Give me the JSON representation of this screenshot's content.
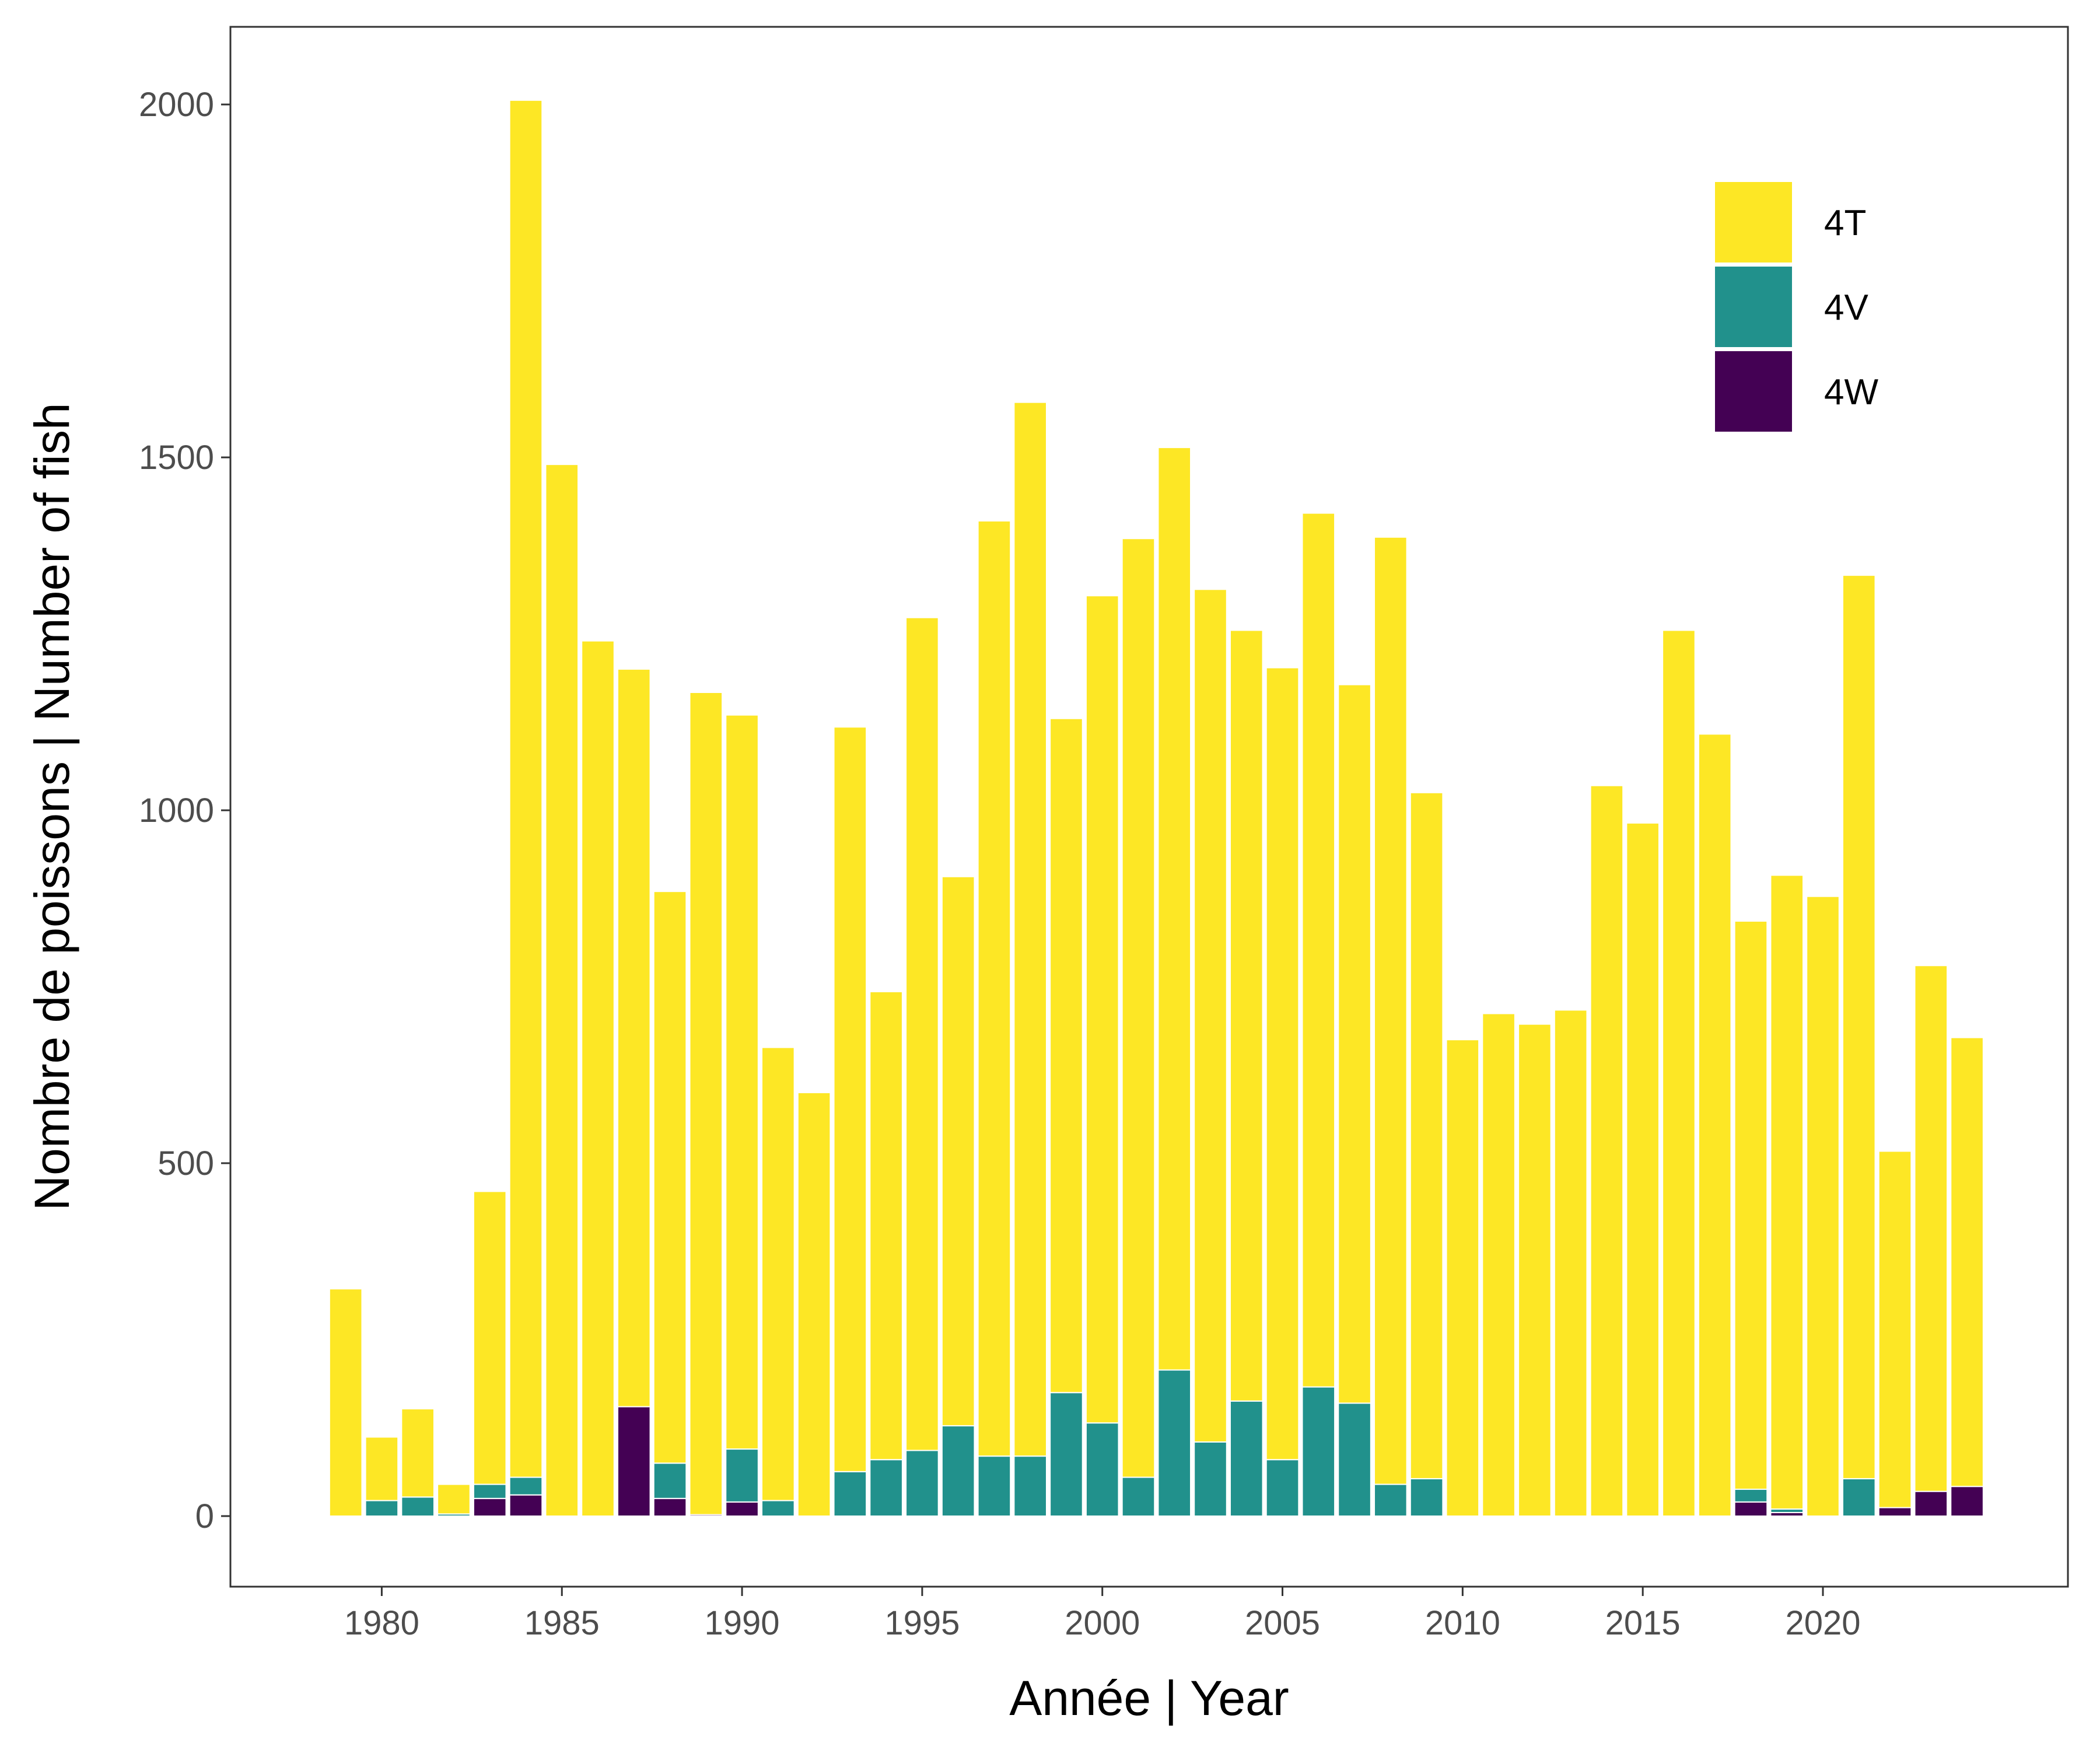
{
  "chart_data": {
    "type": "bar",
    "stacked": true,
    "xlabel": "Année | Year",
    "ylabel": "Nombre de poissons | Number of fish",
    "ylim": [
      -100,
      2110
    ],
    "xlim": [
      1975.8,
      2026.8
    ],
    "yticks": [
      0,
      500,
      1000,
      1500,
      2000
    ],
    "xticks": [
      1980,
      1985,
      1990,
      1995,
      2000,
      2005,
      2010,
      2015,
      2020
    ],
    "grid": false,
    "legend_position": "top-right",
    "x": [
      1979,
      1980,
      1981,
      1982,
      1983,
      1984,
      1985,
      1986,
      1987,
      1988,
      1989,
      1990,
      1991,
      1992,
      1993,
      1994,
      1995,
      1996,
      1997,
      1998,
      1999,
      2000,
      2001,
      2002,
      2003,
      2004,
      2005,
      2006,
      2007,
      2008,
      2009,
      2010,
      2011,
      2012,
      2013,
      2014,
      2015,
      2016,
      2017,
      2018,
      2019,
      2020,
      2021,
      2022,
      2023,
      2024
    ],
    "series": [
      {
        "name": "4W",
        "color": "#440154",
        "values": [
          0,
          0,
          0,
          0,
          25,
          30,
          0,
          0,
          155,
          25,
          2,
          20,
          0,
          0,
          0,
          0,
          0,
          0,
          0,
          0,
          0,
          0,
          0,
          0,
          0,
          0,
          0,
          0,
          0,
          0,
          0,
          0,
          0,
          0,
          0,
          0,
          0,
          0,
          0,
          20,
          5,
          0,
          0,
          12,
          35,
          42
        ]
      },
      {
        "name": "4V",
        "color": "#21918C",
        "values": [
          0,
          22,
          27,
          3,
          20,
          25,
          0,
          0,
          0,
          50,
          0,
          75,
          22,
          0,
          63,
          80,
          93,
          128,
          85,
          85,
          175,
          132,
          55,
          207,
          105,
          163,
          80,
          183,
          160,
          45,
          53,
          0,
          0,
          0,
          0,
          0,
          0,
          0,
          0,
          18,
          5,
          0,
          53,
          0,
          0,
          0
        ]
      },
      {
        "name": "4T",
        "color": "#FDE725",
        "values": [
          322,
          90,
          125,
          42,
          415,
          1951,
          1490,
          1240,
          1045,
          810,
          1165,
          1040,
          642,
          600,
          1055,
          663,
          1180,
          778,
          1325,
          1493,
          955,
          1172,
          1330,
          1307,
          1208,
          1092,
          1122,
          1238,
          1018,
          1342,
          972,
          675,
          712,
          697,
          717,
          1035,
          982,
          1255,
          1108,
          805,
          898,
          878,
          1280,
          505,
          745,
          636
        ]
      }
    ]
  }
}
